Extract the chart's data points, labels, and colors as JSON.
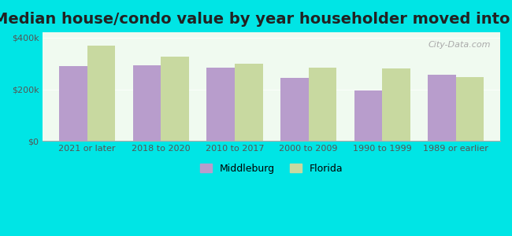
{
  "title": "Median house/condo value by year householder moved into unit",
  "categories": [
    "2021 or later",
    "2018 to 2020",
    "2010 to 2017",
    "2000 to 2009",
    "1990 to 1999",
    "1989 or earlier"
  ],
  "middleburg_values": [
    290000,
    292000,
    285000,
    245000,
    195000,
    255000
  ],
  "florida_values": [
    370000,
    325000,
    300000,
    285000,
    280000,
    248000
  ],
  "middleburg_color": "#b89dcc",
  "florida_color": "#c8d9a0",
  "background_outer": "#00e5e5",
  "background_inner": "#f0faf0",
  "title_fontsize": 14,
  "axis_label_color": "#555555",
  "legend_middleburg": "Middleburg",
  "legend_florida": "Florida",
  "ylim": [
    0,
    420000
  ],
  "yticks": [
    0,
    200000,
    400000
  ],
  "ytick_labels": [
    "$0",
    "$200k",
    "$400k"
  ],
  "bar_width": 0.38,
  "watermark": "City-Data.com"
}
